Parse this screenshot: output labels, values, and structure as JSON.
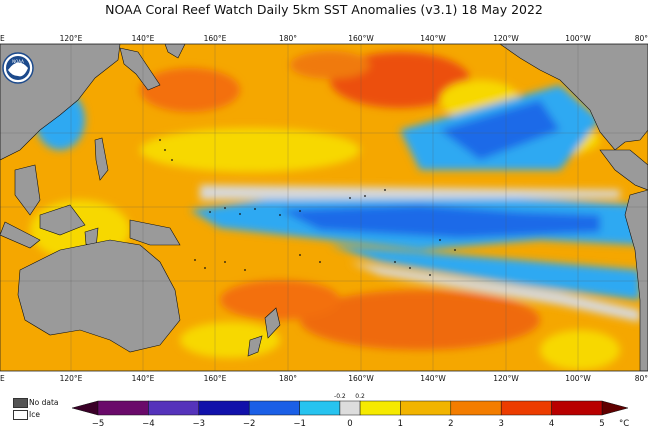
{
  "title": "NOAA Coral Reef Watch Daily 5km SST Anomalies  (v3.1)   18 May 2022",
  "top_lon_labels": [
    "E",
    "120°E",
    "140°E",
    "160°E",
    "180°",
    "160°W",
    "140°W",
    "120°W",
    "100°W",
    "80°"
  ],
  "bottom_lon_labels": [
    "E",
    "120°E",
    "140°E",
    "160°E",
    "180°",
    "160°W",
    "140°W",
    "120°W",
    "100°W",
    "80°"
  ],
  "logo": {
    "text": "NOAA"
  },
  "legend": {
    "no_data": "No data",
    "ice": "Ice",
    "no_data_color": "#555555",
    "ice_color": "#ffffff"
  },
  "colorbar": {
    "ticks": [
      "−5",
      "−4",
      "−3",
      "−2",
      "−1",
      "0",
      "1",
      "2",
      "3",
      "4",
      "5"
    ],
    "small_ticks": [
      "-0.2",
      "0.2"
    ],
    "unit": "°C",
    "colors": [
      "#3a0028",
      "#6a0a6a",
      "#5533bb",
      "#1111aa",
      "#1b5fe6",
      "#27c3ef",
      "#dddddd",
      "#f6ea00",
      "#f2b400",
      "#f37d00",
      "#ec3c00",
      "#b80000",
      "#600000"
    ]
  },
  "map_colors": {
    "land": "#9a9a9a",
    "warm": "#f5a700",
    "hot": "#ef6a10",
    "yellow": "#f7d800",
    "neutral": "#d8d8d8",
    "cool": "#2fa9f2",
    "cold": "#1e6ae8"
  }
}
